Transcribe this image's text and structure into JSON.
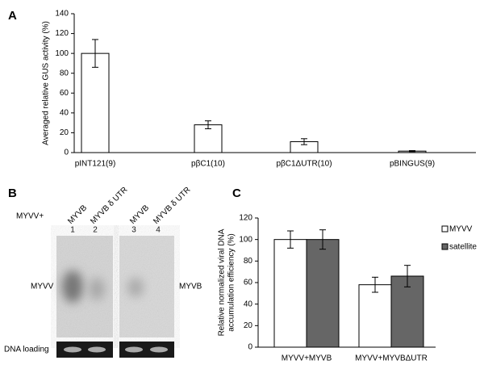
{
  "chart_data": [
    {
      "type": "bar",
      "panel": "A",
      "ylabel": "Averaged relative GUS activity (%)",
      "categories": [
        "pINT121(9)",
        "pβC1(10)",
        "pβC1ΔUTR(10)",
        "pBINGUS(9)"
      ],
      "values": [
        100,
        28,
        11,
        1.5
      ],
      "errors": [
        14,
        4,
        3,
        0.5
      ],
      "color": "#ffffff",
      "ylim": [
        0,
        140
      ],
      "yticks": [
        0,
        20,
        40,
        60,
        80,
        100,
        120,
        140
      ]
    },
    {
      "type": "grouped_bar",
      "panel": "C",
      "ylabel": [
        "Relative normalized viral DNA",
        "accumulation efficiency (%)"
      ],
      "categories": [
        "MYVV+MYVB",
        "MYVV+MYVBΔUTR"
      ],
      "series": [
        {
          "name": "MYVV",
          "color": "#ffffff",
          "values": [
            100,
            58
          ],
          "errors": [
            8,
            7
          ]
        },
        {
          "name": "satellite",
          "color": "#666666",
          "values": [
            100,
            66
          ],
          "errors": [
            9,
            10
          ]
        }
      ],
      "ylim": [
        0,
        120
      ],
      "yticks": [
        0,
        20,
        40,
        60,
        80,
        100,
        120
      ],
      "legend": "upper right"
    }
  ],
  "gel": {
    "panel": "B",
    "prefix": "MYVV+",
    "lanes": [
      "MYVB",
      "MYVB δ UTR",
      "MYVB",
      "MYVB δ UTR"
    ],
    "lane_numbers": [
      "1",
      "2",
      "3",
      "4"
    ],
    "band_left": "MYVV",
    "band_right": "MYVB",
    "loading": "DNA loading"
  }
}
